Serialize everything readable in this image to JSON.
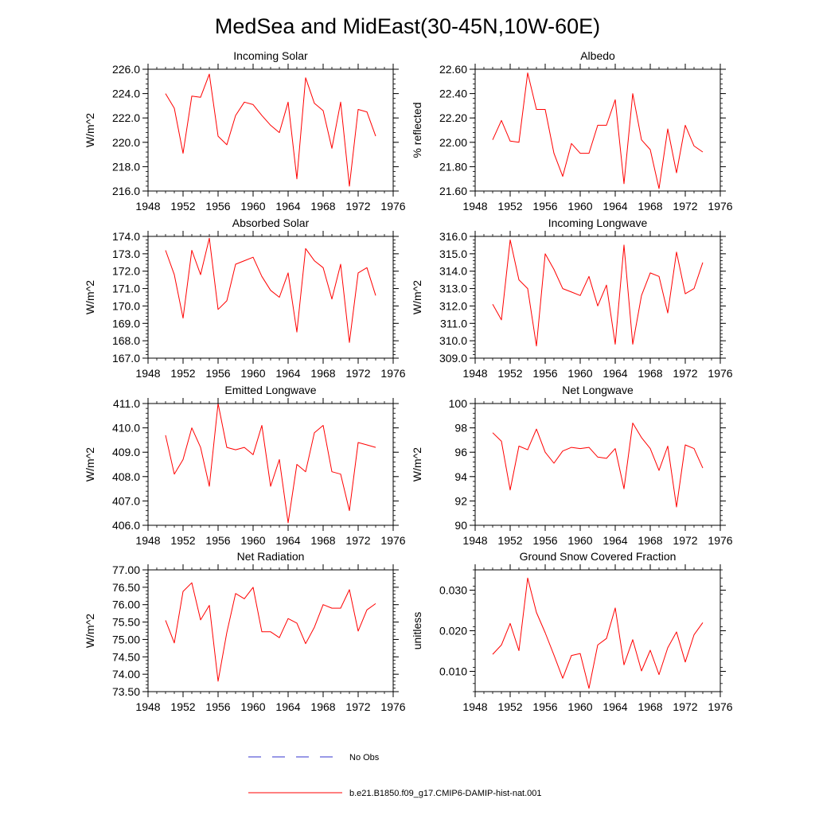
{
  "title": "MedSea and MidEast(30-45N,10W-60E)",
  "colors": {
    "model": "#ff0000",
    "obs": "#3333cc",
    "axis": "#000000"
  },
  "legend": {
    "obs_label": "No Obs",
    "model_label": "b.e21.B1850.f09_g17.CMIP6-DAMIP-hist-nat.001"
  },
  "chart_data": [
    {
      "type": "line",
      "title": "Incoming Solar",
      "xlabel": "",
      "ylabel": "W/m^2",
      "xlim": [
        1948,
        1976
      ],
      "ylim": [
        216.0,
        226.0
      ],
      "x_ticks": [
        1948,
        1952,
        1956,
        1960,
        1964,
        1968,
        1972,
        1976
      ],
      "y_ticks": [
        "216.0",
        "218.0",
        "220.0",
        "222.0",
        "224.0",
        "226.0"
      ],
      "x": [
        1950,
        1951,
        1952,
        1953,
        1954,
        1955,
        1956,
        1957,
        1958,
        1959,
        1960,
        1961,
        1962,
        1963,
        1964,
        1965,
        1966,
        1967,
        1968,
        1969,
        1970,
        1971,
        1972,
        1973,
        1974
      ],
      "series": [
        {
          "values": [
            224.0,
            222.8,
            219.1,
            223.8,
            223.7,
            225.6,
            220.5,
            219.8,
            222.2,
            223.3,
            223.1,
            222.2,
            221.4,
            220.8,
            223.3,
            217.0,
            225.3,
            223.2,
            222.6,
            219.5,
            223.3,
            216.4,
            222.7,
            222.5,
            220.5
          ]
        }
      ]
    },
    {
      "type": "line",
      "title": "Albedo",
      "xlabel": "",
      "ylabel": "% reflected",
      "xlim": [
        1948,
        1976
      ],
      "ylim": [
        21.6,
        22.6
      ],
      "x_ticks": [
        1948,
        1952,
        1956,
        1960,
        1964,
        1968,
        1972,
        1976
      ],
      "y_ticks": [
        "21.60",
        "21.80",
        "22.00",
        "22.20",
        "22.40",
        "22.60"
      ],
      "x": [
        1950,
        1951,
        1952,
        1953,
        1954,
        1955,
        1956,
        1957,
        1958,
        1959,
        1960,
        1961,
        1962,
        1963,
        1964,
        1965,
        1966,
        1967,
        1968,
        1969,
        1970,
        1971,
        1972,
        1973,
        1974
      ],
      "series": [
        {
          "values": [
            22.02,
            22.18,
            22.01,
            22.0,
            22.57,
            22.27,
            22.27,
            21.91,
            21.72,
            21.99,
            21.91,
            21.91,
            22.14,
            22.14,
            22.35,
            21.66,
            22.4,
            22.02,
            21.94,
            21.62,
            22.11,
            21.75,
            22.14,
            21.97,
            21.92
          ]
        }
      ]
    },
    {
      "type": "line",
      "title": "Absorbed Solar",
      "xlabel": "",
      "ylabel": "W/m^2",
      "xlim": [
        1948,
        1976
      ],
      "ylim": [
        167.0,
        174.0
      ],
      "x_ticks": [
        1948,
        1952,
        1956,
        1960,
        1964,
        1968,
        1972,
        1976
      ],
      "y_ticks": [
        "167.0",
        "168.0",
        "169.0",
        "170.0",
        "171.0",
        "172.0",
        "173.0",
        "174.0"
      ],
      "x": [
        1950,
        1951,
        1952,
        1953,
        1954,
        1955,
        1956,
        1957,
        1958,
        1959,
        1960,
        1961,
        1962,
        1963,
        1964,
        1965,
        1966,
        1967,
        1968,
        1969,
        1970,
        1971,
        1972,
        1973,
        1974
      ],
      "series": [
        {
          "values": [
            173.2,
            171.8,
            169.3,
            173.2,
            171.8,
            173.9,
            169.8,
            170.3,
            172.4,
            172.6,
            172.8,
            171.7,
            170.9,
            170.5,
            171.9,
            168.5,
            173.3,
            172.6,
            172.2,
            170.4,
            172.4,
            167.9,
            171.9,
            172.2,
            170.6
          ]
        }
      ]
    },
    {
      "type": "line",
      "title": "Incoming Longwave",
      "xlabel": "",
      "ylabel": "W/m^2",
      "xlim": [
        1948,
        1976
      ],
      "ylim": [
        309.0,
        316.0
      ],
      "x_ticks": [
        1948,
        1952,
        1956,
        1960,
        1964,
        1968,
        1972,
        1976
      ],
      "y_ticks": [
        "309.0",
        "310.0",
        "311.0",
        "312.0",
        "313.0",
        "314.0",
        "315.0",
        "316.0"
      ],
      "x": [
        1950,
        1951,
        1952,
        1953,
        1954,
        1955,
        1956,
        1957,
        1958,
        1959,
        1960,
        1961,
        1962,
        1963,
        1964,
        1965,
        1966,
        1967,
        1968,
        1969,
        1970,
        1971,
        1972,
        1973,
        1974
      ],
      "series": [
        {
          "values": [
            312.1,
            311.2,
            315.8,
            313.5,
            313.0,
            309.7,
            315.0,
            314.1,
            313.0,
            312.8,
            312.6,
            313.7,
            312.0,
            313.2,
            309.8,
            315.5,
            309.8,
            312.6,
            313.9,
            313.7,
            311.6,
            315.1,
            312.7,
            313.0,
            314.5
          ]
        }
      ]
    },
    {
      "type": "line",
      "title": "Emitted Longwave",
      "xlabel": "",
      "ylabel": "W/m^2",
      "xlim": [
        1948,
        1976
      ],
      "ylim": [
        406.0,
        411.0
      ],
      "x_ticks": [
        1948,
        1952,
        1956,
        1960,
        1964,
        1968,
        1972,
        1976
      ],
      "y_ticks": [
        "406.0",
        "407.0",
        "408.0",
        "409.0",
        "410.0",
        "411.0"
      ],
      "x": [
        1950,
        1951,
        1952,
        1953,
        1954,
        1955,
        1956,
        1957,
        1958,
        1959,
        1960,
        1961,
        1962,
        1963,
        1964,
        1965,
        1966,
        1967,
        1968,
        1969,
        1970,
        1971,
        1972,
        1973,
        1974
      ],
      "series": [
        {
          "values": [
            409.7,
            408.1,
            408.7,
            410.0,
            409.2,
            407.6,
            411.0,
            409.2,
            409.1,
            409.2,
            408.9,
            410.1,
            407.6,
            408.7,
            406.1,
            408.5,
            408.2,
            409.8,
            410.1,
            408.2,
            408.1,
            406.6,
            409.4,
            409.3,
            409.2
          ]
        }
      ]
    },
    {
      "type": "line",
      "title": "Net Longwave",
      "xlabel": "",
      "ylabel": "W/m^2",
      "xlim": [
        1948,
        1976
      ],
      "ylim": [
        90,
        100
      ],
      "x_ticks": [
        1948,
        1952,
        1956,
        1960,
        1964,
        1968,
        1972,
        1976
      ],
      "y_ticks": [
        "90",
        "92",
        "94",
        "96",
        "98",
        "100"
      ],
      "x": [
        1950,
        1951,
        1952,
        1953,
        1954,
        1955,
        1956,
        1957,
        1958,
        1959,
        1960,
        1961,
        1962,
        1963,
        1964,
        1965,
        1966,
        1967,
        1968,
        1969,
        1970,
        1971,
        1972,
        1973,
        1974
      ],
      "series": [
        {
          "values": [
            97.6,
            96.9,
            92.9,
            96.5,
            96.2,
            97.9,
            96.0,
            95.1,
            96.1,
            96.4,
            96.3,
            96.4,
            95.6,
            95.5,
            96.3,
            93.0,
            98.4,
            97.2,
            96.3,
            94.5,
            96.5,
            91.5,
            96.6,
            96.3,
            94.7
          ]
        }
      ]
    },
    {
      "type": "line",
      "title": "Net Radiation",
      "xlabel": "",
      "ylabel": "W/m^2",
      "xlim": [
        1948,
        1976
      ],
      "ylim": [
        73.5,
        77.0
      ],
      "x_ticks": [
        1948,
        1952,
        1956,
        1960,
        1964,
        1968,
        1972,
        1976
      ],
      "y_ticks": [
        "73.50",
        "74.00",
        "74.50",
        "75.00",
        "75.50",
        "76.00",
        "76.50",
        "77.00"
      ],
      "x": [
        1950,
        1951,
        1952,
        1953,
        1954,
        1955,
        1956,
        1957,
        1958,
        1959,
        1960,
        1961,
        1962,
        1963,
        1964,
        1965,
        1966,
        1967,
        1968,
        1969,
        1970,
        1971,
        1972,
        1973,
        1974
      ],
      "series": [
        {
          "values": [
            75.55,
            74.9,
            76.38,
            76.63,
            75.56,
            75.98,
            73.8,
            75.2,
            76.32,
            76.17,
            76.5,
            75.22,
            75.22,
            75.05,
            75.6,
            75.47,
            74.88,
            75.35,
            76.0,
            75.9,
            75.9,
            76.43,
            75.24,
            75.85,
            76.03
          ]
        }
      ]
    },
    {
      "type": "line",
      "title": "Ground Snow Covered Fraction",
      "xlabel": "",
      "ylabel": "unitless",
      "xlim": [
        1948,
        1976
      ],
      "ylim": [
        0.005,
        0.035
      ],
      "x_ticks": [
        1948,
        1952,
        1956,
        1960,
        1964,
        1968,
        1972,
        1976
      ],
      "y_ticks": [
        "0.010",
        "0.020",
        "0.030"
      ],
      "y_tick_values": [
        0.01,
        0.02,
        0.03
      ],
      "x": [
        1950,
        1951,
        1952,
        1953,
        1954,
        1955,
        1956,
        1957,
        1958,
        1959,
        1960,
        1961,
        1962,
        1963,
        1964,
        1965,
        1966,
        1967,
        1968,
        1969,
        1970,
        1971,
        1972,
        1973,
        1974
      ],
      "series": [
        {
          "values": [
            0.0142,
            0.0165,
            0.0218,
            0.0151,
            0.033,
            0.0245,
            0.0195,
            0.014,
            0.0083,
            0.0139,
            0.0144,
            0.0058,
            0.0165,
            0.0181,
            0.0256,
            0.0116,
            0.0178,
            0.0101,
            0.0152,
            0.0092,
            0.0158,
            0.0197,
            0.0123,
            0.019,
            0.022
          ]
        }
      ]
    }
  ]
}
